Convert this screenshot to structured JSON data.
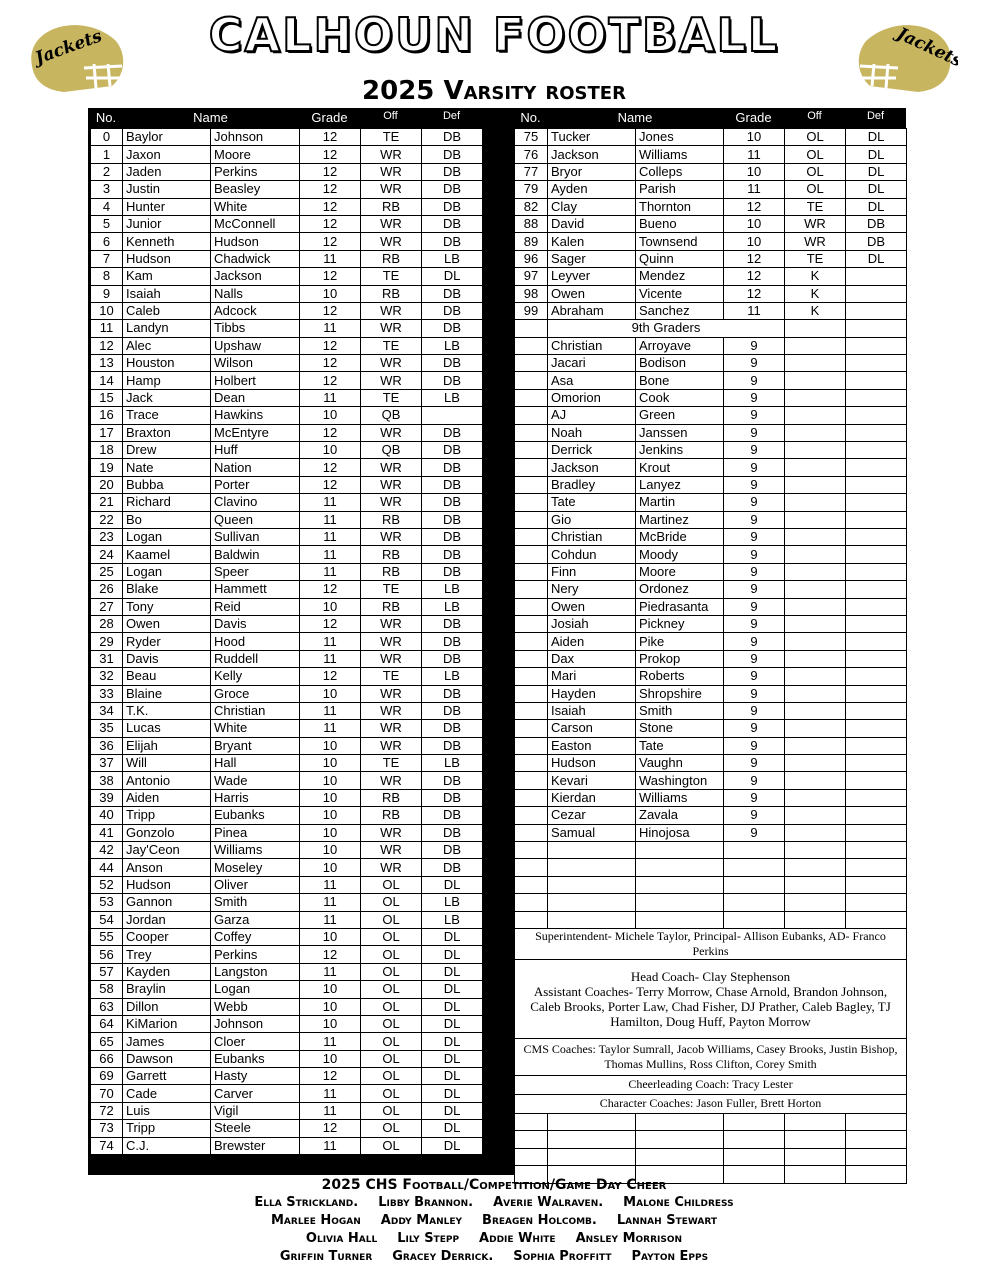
{
  "header": {
    "title": "CALHOUN FOOTBALL",
    "subtitle": "2025 Varsity roster",
    "logo_text": "Jackets",
    "accent": "#c8b560"
  },
  "columns": {
    "no": "No.",
    "name": "Name",
    "grade": "Grade",
    "off": "Off",
    "def": "Def"
  },
  "left_rows": [
    [
      "0",
      "Baylor",
      "Johnson",
      "12",
      "TE",
      "DB"
    ],
    [
      "1",
      "Jaxon",
      "Moore",
      "12",
      "WR",
      "DB"
    ],
    [
      "2",
      "Jaden",
      "Perkins",
      "12",
      "WR",
      "DB"
    ],
    [
      "3",
      "Justin",
      "Beasley",
      "12",
      "WR",
      "DB"
    ],
    [
      "4",
      "Hunter",
      "White",
      "12",
      "RB",
      "DB"
    ],
    [
      "5",
      "Junior",
      "McConnell",
      "12",
      "WR",
      "DB"
    ],
    [
      "6",
      "Kenneth",
      "Hudson",
      "12",
      "WR",
      "DB"
    ],
    [
      "7",
      "Hudson",
      "Chadwick",
      "11",
      "RB",
      "LB"
    ],
    [
      "8",
      "Kam",
      "Jackson",
      "12",
      "TE",
      "DL"
    ],
    [
      "9",
      "Isaiah",
      "Nalls",
      "10",
      "RB",
      "DB"
    ],
    [
      "10",
      "Caleb",
      "Adcock",
      "12",
      "WR",
      "DB"
    ],
    [
      "11",
      "Landyn",
      "Tibbs",
      "11",
      "WR",
      "DB"
    ],
    [
      "12",
      "Alec",
      "Upshaw",
      "12",
      "TE",
      "LB"
    ],
    [
      "13",
      "Houston",
      "Wilson",
      "12",
      "WR",
      "DB"
    ],
    [
      "14",
      "Hamp",
      "Holbert",
      "12",
      "WR",
      "DB"
    ],
    [
      "15",
      "Jack",
      "Dean",
      "11",
      "TE",
      "LB"
    ],
    [
      "16",
      "Trace",
      "Hawkins",
      "10",
      "QB",
      ""
    ],
    [
      "17",
      "Braxton",
      "McEntyre",
      "12",
      "WR",
      "DB"
    ],
    [
      "18",
      "Drew",
      "Huff",
      "10",
      "QB",
      "DB"
    ],
    [
      "19",
      "Nate",
      "Nation",
      "12",
      "WR",
      "DB"
    ],
    [
      "20",
      "Bubba",
      "Porter",
      "12",
      "WR",
      "DB"
    ],
    [
      "21",
      "Richard",
      "Clavino",
      "11",
      "WR",
      "DB"
    ],
    [
      "22",
      "Bo",
      "Queen",
      "11",
      "RB",
      "DB"
    ],
    [
      "23",
      "Logan",
      "Sullivan",
      "11",
      "WR",
      "DB"
    ],
    [
      "24",
      "Kaamel",
      "Baldwin",
      "11",
      "RB",
      "DB"
    ],
    [
      "25",
      "Logan",
      "Speer",
      "11",
      "RB",
      "DB"
    ],
    [
      "26",
      "Blake",
      "Hammett",
      "12",
      "TE",
      "LB"
    ],
    [
      "27",
      "Tony",
      "Reid",
      "10",
      "RB",
      "LB"
    ],
    [
      "28",
      "Owen",
      "Davis",
      "12",
      "WR",
      "DB"
    ],
    [
      "29",
      "Ryder",
      "Hood",
      "11",
      "WR",
      "DB"
    ],
    [
      "31",
      "Davis",
      "Ruddell",
      "11",
      "WR",
      "DB"
    ],
    [
      "32",
      "Beau",
      "Kelly",
      "12",
      "TE",
      "LB"
    ],
    [
      "33",
      "Blaine",
      "Groce",
      "10",
      "WR",
      "DB"
    ],
    [
      "34",
      "T.K.",
      "Christian",
      "11",
      "WR",
      "DB"
    ],
    [
      "35",
      "Lucas",
      "White",
      "11",
      "WR",
      "DB"
    ],
    [
      "36",
      "Elijah",
      "Bryant",
      "10",
      "WR",
      "DB"
    ],
    [
      "37",
      "Will",
      "Hall",
      "10",
      "TE",
      "LB"
    ],
    [
      "38",
      "Antonio",
      "Wade",
      "10",
      "WR",
      "DB"
    ],
    [
      "39",
      "Aiden",
      "Harris",
      "10",
      "RB",
      "DB"
    ],
    [
      "40",
      "Tripp",
      "Eubanks",
      "10",
      "RB",
      "DB"
    ],
    [
      "41",
      "Gonzolo",
      "Pinea",
      "10",
      "WR",
      "DB"
    ],
    [
      "42",
      "Jay'Ceon",
      "Williams",
      "10",
      "WR",
      "DB"
    ],
    [
      "44",
      "Anson",
      "Moseley",
      "10",
      "WR",
      "DB"
    ],
    [
      "52",
      "Hudson",
      "Oliver",
      "11",
      "OL",
      "DL"
    ],
    [
      "53",
      "Gannon",
      "Smith",
      "11",
      "OL",
      "LB"
    ],
    [
      "54",
      "Jordan",
      "Garza",
      "11",
      "OL",
      "LB"
    ],
    [
      "55",
      "Cooper",
      "Coffey",
      "10",
      "OL",
      "DL"
    ],
    [
      "56",
      "Trey",
      "Perkins",
      "12",
      "OL",
      "DL"
    ],
    [
      "57",
      "Kayden",
      "Langston",
      "11",
      "OL",
      "DL"
    ],
    [
      "58",
      "Braylin",
      "Logan",
      "10",
      "OL",
      "DL"
    ],
    [
      "63",
      "Dillon",
      "Webb",
      "10",
      "OL",
      "DL"
    ],
    [
      "64",
      "KiMarion",
      "Johnson",
      "10",
      "OL",
      "DL"
    ],
    [
      "65",
      "James",
      "Cloer",
      "11",
      "OL",
      "DL"
    ],
    [
      "66",
      "Dawson",
      "Eubanks",
      "10",
      "OL",
      "DL"
    ],
    [
      "69",
      "Garrett",
      "Hasty",
      "12",
      "OL",
      "DL"
    ],
    [
      "70",
      "Cade",
      "Carver",
      "11",
      "OL",
      "DL"
    ],
    [
      "72",
      "Luis",
      "Vigil",
      "11",
      "OL",
      "DL"
    ],
    [
      "73",
      "Tripp",
      "Steele",
      "12",
      "OL",
      "DL"
    ],
    [
      "74",
      "C.J.",
      "Brewster",
      "11",
      "OL",
      "DL"
    ]
  ],
  "right_rows": [
    [
      "75",
      "Tucker",
      "Jones",
      "10",
      "OL",
      "DL"
    ],
    [
      "76",
      "Jackson",
      "Williams",
      "11",
      "OL",
      "DL"
    ],
    [
      "77",
      "Bryor",
      "Colleps",
      "10",
      "OL",
      "DL"
    ],
    [
      "79",
      "Ayden",
      "Parish",
      "11",
      "OL",
      "DL"
    ],
    [
      "82",
      "Clay",
      "Thornton",
      "12",
      "TE",
      "DL"
    ],
    [
      "88",
      "David",
      "Bueno",
      "10",
      "WR",
      "DB"
    ],
    [
      "89",
      "Kalen",
      "Townsend",
      "10",
      "WR",
      "DB"
    ],
    [
      "96",
      "Sager",
      "Quinn",
      "12",
      "TE",
      "DL"
    ],
    [
      "97",
      "Leyver",
      "Mendez",
      "12",
      "K",
      ""
    ],
    [
      "98",
      "Owen",
      "Vicente",
      "12",
      "K",
      ""
    ],
    [
      "99",
      "Abraham",
      "Sanchez",
      "11",
      "K",
      ""
    ]
  ],
  "freshmen_label": "9th Graders",
  "freshmen": [
    [
      "Christian",
      "Arroyave"
    ],
    [
      "Jacari",
      "Bodison"
    ],
    [
      "Asa",
      "Bone"
    ],
    [
      "Omorion",
      "Cook"
    ],
    [
      "AJ",
      "Green"
    ],
    [
      "Noah",
      "Janssen"
    ],
    [
      "Derrick",
      "Jenkins"
    ],
    [
      "Jackson",
      "Krout"
    ],
    [
      "Bradley",
      "Lanyez"
    ],
    [
      "Tate",
      "Martin"
    ],
    [
      "Gio",
      "Martinez"
    ],
    [
      "Christian",
      "McBride"
    ],
    [
      "Cohdun",
      "Moody"
    ],
    [
      "Finn",
      "Moore"
    ],
    [
      "Nery",
      "Ordonez"
    ],
    [
      "Owen",
      "Piedrasanta"
    ],
    [
      "Josiah",
      "Pickney"
    ],
    [
      "Aiden",
      "Pike"
    ],
    [
      "Dax",
      "Prokop"
    ],
    [
      "Mari",
      "Roberts"
    ],
    [
      "Hayden",
      "Shropshire"
    ],
    [
      "Isaiah",
      "Smith"
    ],
    [
      "Carson",
      "Stone"
    ],
    [
      "Easton",
      "Tate"
    ],
    [
      "Hudson",
      "Vaughn"
    ],
    [
      "Kevari",
      "Washington"
    ],
    [
      "Kierdan",
      "Williams"
    ],
    [
      "Cezar",
      "Zavala"
    ],
    [
      "Samual",
      "Hinojosa"
    ]
  ],
  "freshmen_grade": "9",
  "staff": {
    "admin": "Superintendent- Michele Taylor, Principal- Allison Eubanks, AD- Franco Perkins",
    "head_coach": "Head Coach- Clay Stephenson",
    "assistants": "Assistant Coaches- Terry Morrow, Chase Arnold, Brandon Johnson, Caleb Brooks, Porter Law, Chad Fisher, DJ Prather, Caleb Bagley, TJ Hamilton, Doug Huff, Payton Morrow",
    "cms": "CMS Coaches: Taylor Sumrall, Jacob Williams, Casey Brooks, Justin Bishop, Thomas Mullins, Ross Clifton, Corey Smith",
    "cheer_coach": "Cheerleading Coach: Tracy Lester",
    "character": "Character Coaches: Jason Fuller, Brett Horton"
  },
  "cheer": {
    "title": "2025 CHS Football/Competition/Game Day Cheer",
    "lines": [
      [
        "Ella Strickland.",
        "Libby Brannon.",
        "Averie Walraven.",
        "Malone Childress"
      ],
      [
        "Marlee Hogan",
        "Addy Manley",
        "Breagen Holcomb.",
        "Lannah Stewart"
      ],
      [
        "Olivia Hall",
        "Lily Stepp",
        "Addie White",
        "Ansley Morrison"
      ],
      [
        "Griffin Turner",
        "Gracey Derrick.",
        "Sophia Proffitt",
        "Payton Epps"
      ]
    ]
  }
}
